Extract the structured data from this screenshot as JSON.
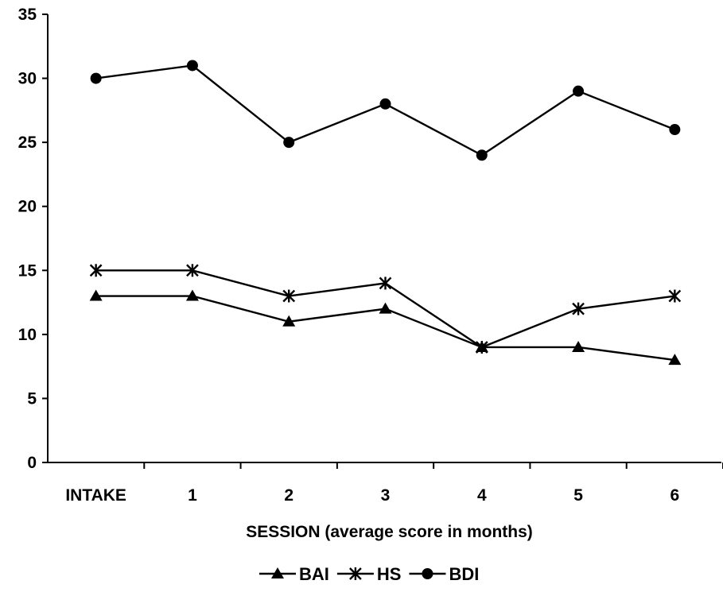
{
  "chart_data": {
    "type": "line",
    "categories": [
      "INTAKE",
      "1",
      "2",
      "3",
      "4",
      "5",
      "6"
    ],
    "xlabel": "SESSION (average score in months)",
    "ylabel": "",
    "ylim": [
      0,
      35
    ],
    "yticks": [
      0,
      5,
      10,
      15,
      20,
      25,
      30,
      35
    ],
    "grid": false,
    "legend_position": "bottom",
    "series": [
      {
        "name": "BAI",
        "marker": "triangle",
        "values": [
          13,
          13,
          11,
          12,
          9,
          9,
          8
        ]
      },
      {
        "name": "HS",
        "marker": "asterisk",
        "values": [
          15,
          15,
          13,
          14,
          9,
          12,
          13
        ]
      },
      {
        "name": "BDI",
        "marker": "circle",
        "values": [
          30,
          31,
          25,
          28,
          24,
          29,
          26
        ]
      }
    ],
    "colors": {
      "line": "#000000",
      "background": "#ffffff"
    }
  }
}
